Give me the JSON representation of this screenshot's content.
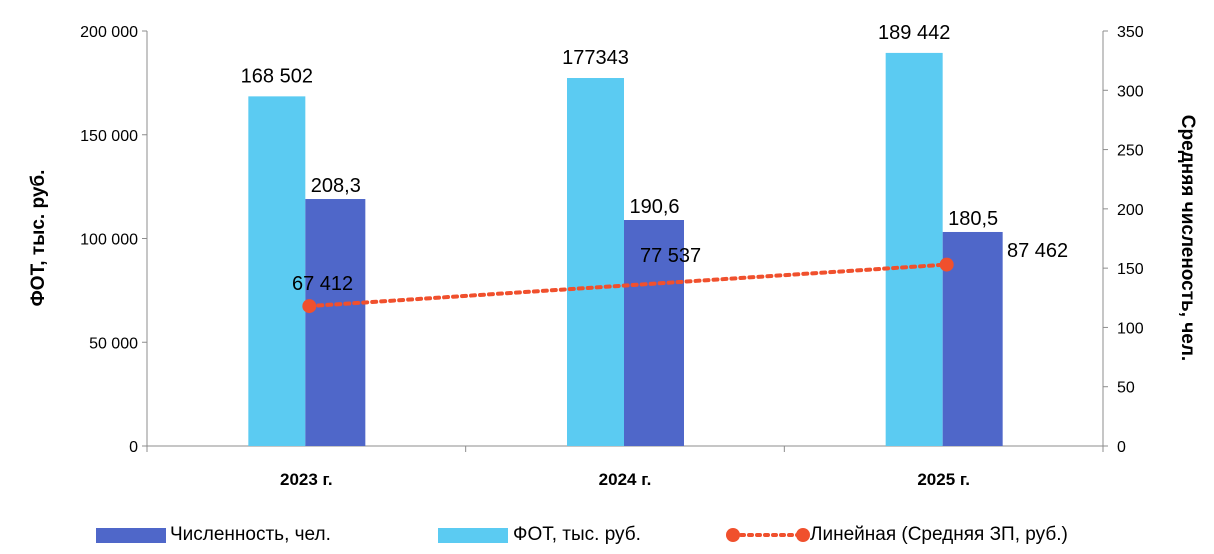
{
  "chart_data": {
    "type": "bar",
    "categories": [
      "2023 г.",
      "2024 г.",
      "2025 г."
    ],
    "left_axis": {
      "title": "ФОТ, тыс. руб.",
      "ylim": [
        0,
        200000
      ],
      "ticks": [
        0,
        50000,
        100000,
        150000,
        200000
      ],
      "tick_labels": [
        "0",
        "50 000",
        "100 000",
        "150 000",
        "200 000"
      ]
    },
    "right_axis": {
      "title": "Средняя численость, чел.",
      "ylim": [
        0,
        350
      ],
      "ticks": [
        0,
        50,
        100,
        150,
        200,
        250,
        300,
        350
      ],
      "tick_labels": [
        "0",
        "50",
        "100",
        "150",
        "200",
        "250",
        "300",
        "350"
      ]
    },
    "series": [
      {
        "name": "ФОТ, тыс. руб.",
        "axis": "left",
        "color": "#5BCBF2",
        "values": [
          168502,
          177343,
          189442
        ],
        "labels": [
          "168 502",
          "177343",
          "189 442"
        ]
      },
      {
        "name": "Численность, чел.",
        "axis": "right",
        "color": "#4F67C9",
        "values": [
          208.3,
          190.6,
          180.5
        ],
        "labels": [
          "208,3",
          "190,6",
          "180,5"
        ]
      }
    ],
    "average_salary": {
      "values": [
        67412,
        77537,
        87462
      ],
      "labels": [
        "67 412",
        "77 537",
        "87 462"
      ],
      "marker_color": "#F0502D",
      "marker_positions_right_axis": [
        118,
        134,
        153
      ]
    },
    "trendline": {
      "name": "Линейная (Средняя ЗП,  руб.)",
      "color": "#F0502D",
      "style": "dotted"
    },
    "legend": {
      "placement": "bottom",
      "order": [
        "Численность, чел.",
        "ФОТ, тыс. руб.",
        "Линейная (Средняя ЗП,  руб.)"
      ]
    },
    "grid": false
  }
}
